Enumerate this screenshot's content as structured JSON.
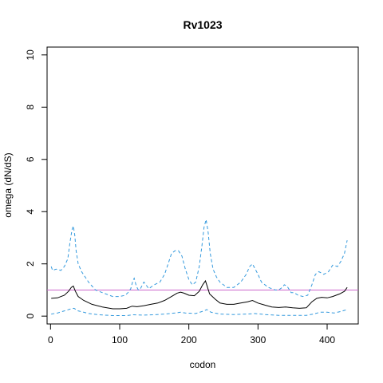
{
  "chart_data": {
    "type": "line",
    "title": "Rv1023",
    "xlabel": "codon",
    "ylabel": "omega (dN/dS)",
    "xlim": [
      -5,
      445
    ],
    "ylim": [
      -0.3,
      10.3
    ],
    "xticks": [
      0,
      100,
      200,
      300,
      400
    ],
    "yticks": [
      0,
      2,
      4,
      6,
      8,
      10
    ],
    "grid": false,
    "legend": "none",
    "reference_line": {
      "y": 1,
      "color": "#cc66cc"
    },
    "series": [
      {
        "role": "upper",
        "style": "dashed",
        "color": "#3399dd",
        "points": [
          [
            1,
            1.9
          ],
          [
            3,
            1.75
          ],
          [
            8,
            1.8
          ],
          [
            15,
            1.75
          ],
          [
            20,
            1.9
          ],
          [
            25,
            2.2
          ],
          [
            28,
            2.8
          ],
          [
            31,
            3.3
          ],
          [
            33,
            3.45
          ],
          [
            35,
            3.1
          ],
          [
            37,
            2.5
          ],
          [
            40,
            2.0
          ],
          [
            45,
            1.7
          ],
          [
            50,
            1.5
          ],
          [
            55,
            1.3
          ],
          [
            60,
            1.15
          ],
          [
            65,
            1.0
          ],
          [
            70,
            0.95
          ],
          [
            80,
            0.85
          ],
          [
            90,
            0.75
          ],
          [
            100,
            0.75
          ],
          [
            108,
            0.8
          ],
          [
            112,
            0.9
          ],
          [
            116,
            1.05
          ],
          [
            119,
            1.35
          ],
          [
            121,
            1.45
          ],
          [
            124,
            1.15
          ],
          [
            127,
            1.0
          ],
          [
            130,
            1.05
          ],
          [
            135,
            1.3
          ],
          [
            138,
            1.2
          ],
          [
            142,
            1.05
          ],
          [
            150,
            1.2
          ],
          [
            158,
            1.3
          ],
          [
            165,
            1.6
          ],
          [
            170,
            2.0
          ],
          [
            175,
            2.4
          ],
          [
            180,
            2.5
          ],
          [
            185,
            2.5
          ],
          [
            190,
            2.3
          ],
          [
            195,
            1.8
          ],
          [
            200,
            1.4
          ],
          [
            205,
            1.2
          ],
          [
            210,
            1.3
          ],
          [
            215,
            1.9
          ],
          [
            219,
            2.7
          ],
          [
            222,
            3.4
          ],
          [
            225,
            3.7
          ],
          [
            228,
            3.2
          ],
          [
            231,
            2.4
          ],
          [
            235,
            1.8
          ],
          [
            240,
            1.5
          ],
          [
            245,
            1.3
          ],
          [
            250,
            1.2
          ],
          [
            255,
            1.1
          ],
          [
            265,
            1.1
          ],
          [
            275,
            1.3
          ],
          [
            283,
            1.6
          ],
          [
            288,
            1.9
          ],
          [
            292,
            2.0
          ],
          [
            295,
            1.85
          ],
          [
            300,
            1.6
          ],
          [
            305,
            1.3
          ],
          [
            315,
            1.1
          ],
          [
            325,
            1.0
          ],
          [
            330,
            1.0
          ],
          [
            335,
            1.1
          ],
          [
            338,
            1.2
          ],
          [
            342,
            1.15
          ],
          [
            348,
            0.9
          ],
          [
            352,
            0.9
          ],
          [
            358,
            0.8
          ],
          [
            365,
            0.75
          ],
          [
            372,
            0.8
          ],
          [
            378,
            1.2
          ],
          [
            383,
            1.6
          ],
          [
            388,
            1.7
          ],
          [
            395,
            1.6
          ],
          [
            402,
            1.7
          ],
          [
            408,
            1.95
          ],
          [
            415,
            1.9
          ],
          [
            420,
            2.1
          ],
          [
            425,
            2.4
          ],
          [
            429,
            2.9
          ]
        ]
      },
      {
        "role": "estimate",
        "style": "solid",
        "color": "#000000",
        "points": [
          [
            1,
            0.68
          ],
          [
            10,
            0.7
          ],
          [
            20,
            0.8
          ],
          [
            26,
            0.95
          ],
          [
            30,
            1.1
          ],
          [
            33,
            1.15
          ],
          [
            36,
            0.95
          ],
          [
            40,
            0.75
          ],
          [
            48,
            0.6
          ],
          [
            60,
            0.45
          ],
          [
            75,
            0.35
          ],
          [
            90,
            0.28
          ],
          [
            100,
            0.28
          ],
          [
            110,
            0.3
          ],
          [
            118,
            0.38
          ],
          [
            125,
            0.36
          ],
          [
            135,
            0.4
          ],
          [
            145,
            0.45
          ],
          [
            155,
            0.5
          ],
          [
            165,
            0.6
          ],
          [
            175,
            0.75
          ],
          [
            183,
            0.88
          ],
          [
            188,
            0.92
          ],
          [
            193,
            0.88
          ],
          [
            200,
            0.8
          ],
          [
            208,
            0.78
          ],
          [
            215,
            0.95
          ],
          [
            220,
            1.2
          ],
          [
            224,
            1.35
          ],
          [
            227,
            1.1
          ],
          [
            230,
            0.85
          ],
          [
            238,
            0.65
          ],
          [
            245,
            0.5
          ],
          [
            255,
            0.45
          ],
          [
            265,
            0.45
          ],
          [
            275,
            0.5
          ],
          [
            285,
            0.55
          ],
          [
            292,
            0.6
          ],
          [
            300,
            0.5
          ],
          [
            310,
            0.42
          ],
          [
            320,
            0.35
          ],
          [
            330,
            0.33
          ],
          [
            340,
            0.35
          ],
          [
            350,
            0.32
          ],
          [
            360,
            0.3
          ],
          [
            370,
            0.32
          ],
          [
            378,
            0.55
          ],
          [
            385,
            0.68
          ],
          [
            392,
            0.72
          ],
          [
            400,
            0.7
          ],
          [
            408,
            0.75
          ],
          [
            418,
            0.85
          ],
          [
            425,
            0.95
          ],
          [
            429,
            1.1
          ]
        ]
      },
      {
        "role": "lower",
        "style": "dashed",
        "color": "#3399dd",
        "points": [
          [
            1,
            0.08
          ],
          [
            10,
            0.12
          ],
          [
            20,
            0.2
          ],
          [
            30,
            0.28
          ],
          [
            34,
            0.3
          ],
          [
            40,
            0.2
          ],
          [
            55,
            0.1
          ],
          [
            70,
            0.05
          ],
          [
            90,
            0.02
          ],
          [
            110,
            0.02
          ],
          [
            120,
            0.05
          ],
          [
            135,
            0.04
          ],
          [
            150,
            0.05
          ],
          [
            165,
            0.08
          ],
          [
            180,
            0.12
          ],
          [
            188,
            0.15
          ],
          [
            195,
            0.12
          ],
          [
            210,
            0.1
          ],
          [
            222,
            0.2
          ],
          [
            226,
            0.25
          ],
          [
            232,
            0.15
          ],
          [
            245,
            0.08
          ],
          [
            265,
            0.06
          ],
          [
            285,
            0.08
          ],
          [
            295,
            0.1
          ],
          [
            310,
            0.06
          ],
          [
            330,
            0.03
          ],
          [
            350,
            0.03
          ],
          [
            370,
            0.03
          ],
          [
            380,
            0.08
          ],
          [
            390,
            0.15
          ],
          [
            400,
            0.15
          ],
          [
            410,
            0.12
          ],
          [
            420,
            0.18
          ],
          [
            429,
            0.25
          ]
        ]
      }
    ]
  }
}
